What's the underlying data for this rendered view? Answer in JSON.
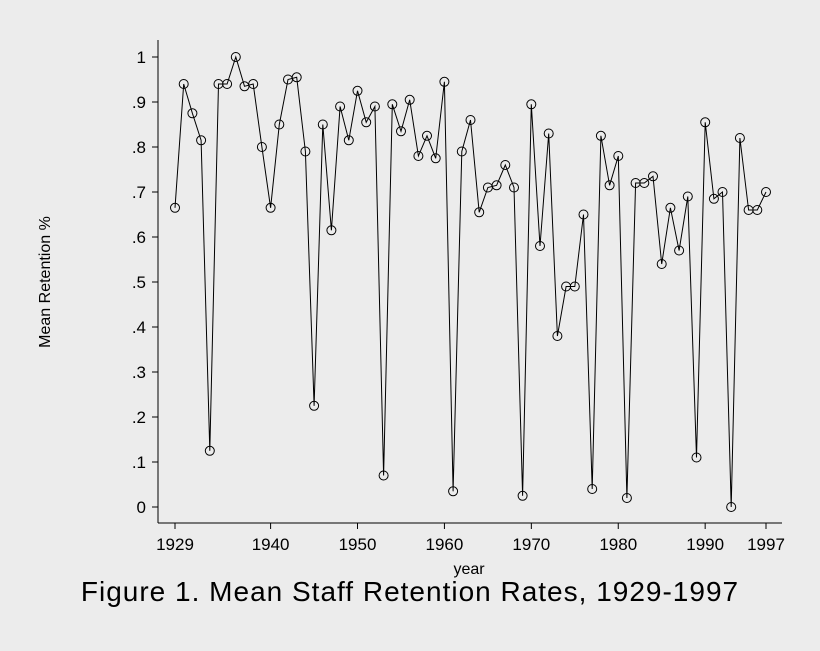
{
  "caption": "Figure 1. Mean Staff Retention Rates, 1929-1997",
  "chart_data": {
    "type": "line",
    "title": "",
    "xlabel": "year",
    "ylabel": "Mean Retention %",
    "xlim": [
      1929,
      1997
    ],
    "ylim": [
      0,
      1
    ],
    "grid": false,
    "marker": "hollow-circle",
    "x_ticks": [
      {
        "value": 1929,
        "label": "1929"
      },
      {
        "value": 1940,
        "label": "1940"
      },
      {
        "value": 1950,
        "label": "1950"
      },
      {
        "value": 1960,
        "label": "1960"
      },
      {
        "value": 1970,
        "label": "1970"
      },
      {
        "value": 1980,
        "label": "1980"
      },
      {
        "value": 1990,
        "label": "1990"
      },
      {
        "value": 1997,
        "label": "1997"
      }
    ],
    "y_ticks": [
      {
        "value": 0,
        "label": "0"
      },
      {
        "value": 0.1,
        "label": ".1"
      },
      {
        "value": 0.2,
        "label": ".2"
      },
      {
        "value": 0.3,
        "label": ".3"
      },
      {
        "value": 0.4,
        "label": ".4"
      },
      {
        "value": 0.5,
        "label": ".5"
      },
      {
        "value": 0.6,
        "label": ".6"
      },
      {
        "value": 0.7,
        "label": ".7"
      },
      {
        "value": 0.8,
        "label": ".8"
      },
      {
        "value": 0.9,
        "label": ".9"
      },
      {
        "value": 1,
        "label": "1"
      }
    ],
    "series": [
      {
        "color": "#000000",
        "x": [
          1929,
          1930,
          1931,
          1932,
          1933,
          1934,
          1935,
          1936,
          1937,
          1938,
          1939,
          1940,
          1941,
          1942,
          1943,
          1944,
          1945,
          1946,
          1947,
          1948,
          1949,
          1950,
          1951,
          1952,
          1953,
          1954,
          1955,
          1956,
          1957,
          1958,
          1959,
          1960,
          1961,
          1962,
          1963,
          1964,
          1965,
          1966,
          1967,
          1968,
          1969,
          1970,
          1971,
          1972,
          1973,
          1974,
          1975,
          1976,
          1977,
          1978,
          1979,
          1980,
          1981,
          1982,
          1983,
          1984,
          1985,
          1986,
          1987,
          1988,
          1989,
          1990,
          1991,
          1992,
          1993,
          1994,
          1995,
          1996,
          1997
        ],
        "y": [
          0.665,
          0.94,
          0.875,
          0.815,
          0.125,
          0.94,
          0.94,
          1.0,
          0.935,
          0.94,
          0.8,
          0.665,
          0.85,
          0.95,
          0.955,
          0.79,
          0.225,
          0.85,
          0.615,
          0.89,
          0.815,
          0.925,
          0.855,
          0.89,
          0.07,
          0.895,
          0.835,
          0.905,
          0.78,
          0.825,
          0.775,
          0.945,
          0.035,
          0.79,
          0.86,
          0.655,
          0.71,
          0.715,
          0.76,
          0.71,
          0.025,
          0.895,
          0.58,
          0.83,
          0.38,
          0.49,
          0.49,
          0.65,
          0.04,
          0.825,
          0.715,
          0.78,
          0.02,
          0.72,
          0.72,
          0.735,
          0.54,
          0.665,
          0.57,
          0.69,
          0.11,
          0.855,
          0.685,
          0.7,
          0.0,
          0.82,
          0.66,
          0.66,
          0.7
        ]
      }
    ]
  }
}
